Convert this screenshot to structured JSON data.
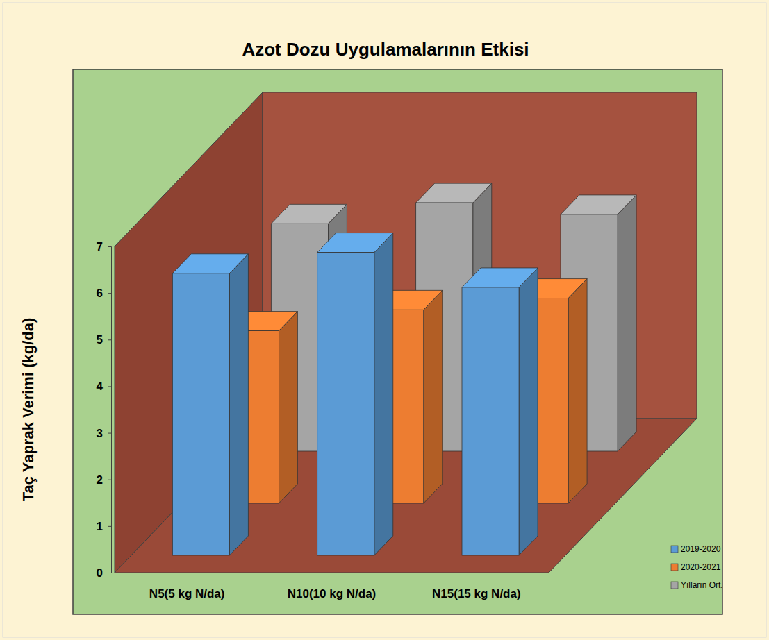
{
  "chart_data": {
    "type": "bar",
    "title": "Azot Dozu Uygulamalarının Etkisi",
    "y_label": "Taç Yaprak Verimi (kg/da)",
    "categories": [
      "N5(5 kg N/da)",
      "N10(10 kg N/da)",
      "N15(15 kg N/da)"
    ],
    "series": [
      {
        "name": "2019-2020",
        "color": "#5b9bd5",
        "values": [
          6.05,
          6.5,
          5.75
        ]
      },
      {
        "name": "2020-2021",
        "color": "#ed7d31",
        "values": [
          3.7,
          4.15,
          4.4
        ]
      },
      {
        "name": "Yılların Ort.",
        "color": "#a5a5a5",
        "values": [
          4.88,
          5.33,
          5.08
        ]
      }
    ],
    "ylim": [
      0,
      7
    ],
    "yticks": [
      0,
      1,
      2,
      3,
      4,
      5,
      6,
      7
    ],
    "legend": "bottom-right",
    "grid": false
  }
}
